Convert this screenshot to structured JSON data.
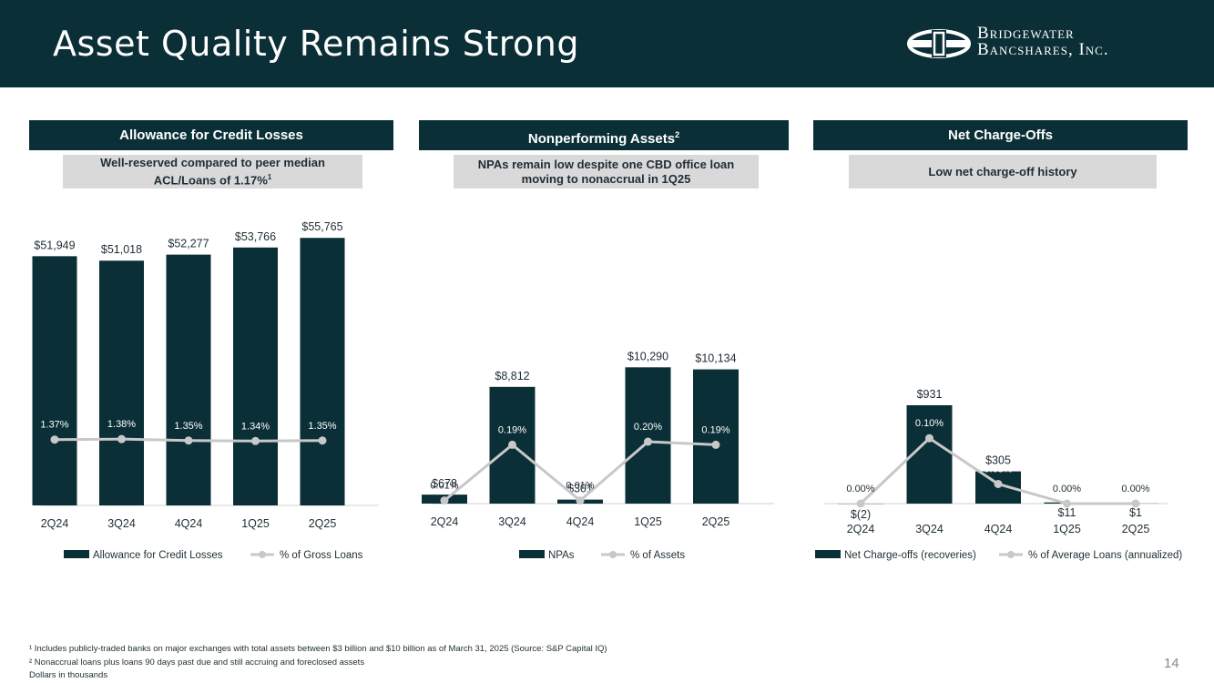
{
  "header": {
    "title": "Asset Quality Remains Strong",
    "logo_line1": "Bridgewater",
    "logo_line2": "Bancshares, Inc."
  },
  "colors": {
    "bar": "#0b2f37",
    "line": "#c8c8c8",
    "marker": "#c8c8c8"
  },
  "panels": [
    {
      "title": "Allowance for Credit Losses",
      "title_sup": "",
      "sub_line1": "Well-reserved compared to peer median",
      "sub_line2": "ACL/Loans of 1.17%",
      "sub_sup": "1"
    },
    {
      "title": "Nonperforming Assets",
      "title_sup": "2",
      "sub_line1": "NPAs remain low despite one CBD office loan",
      "sub_line2": "moving to nonaccrual in 1Q25",
      "sub_sup": ""
    },
    {
      "title": "Net Charge-Offs",
      "title_sup": "",
      "sub_line1": "Low net charge-off history",
      "sub_line2": "",
      "sub_sup": ""
    }
  ],
  "chart_data": [
    {
      "type": "bar",
      "categories": [
        "2Q24",
        "3Q24",
        "4Q24",
        "1Q25",
        "2Q25"
      ],
      "series": [
        {
          "name": "Allowance for Credit Losses",
          "kind": "bar",
          "values": [
            51949,
            51018,
            52277,
            53766,
            55765
          ],
          "labels": [
            "$51,949",
            "$51,018",
            "$52,277",
            "$53,766",
            "$55,765"
          ]
        },
        {
          "name": "% of Gross Loans",
          "kind": "line",
          "values": [
            1.37,
            1.38,
            1.35,
            1.34,
            1.35
          ],
          "labels": [
            "1.37%",
            "1.38%",
            "1.35%",
            "1.34%",
            "1.35%"
          ]
        }
      ],
      "ylim": [
        0,
        56000
      ],
      "line_ylim": [
        0.0,
        3.6
      ]
    },
    {
      "type": "bar",
      "categories": [
        "2Q24",
        "3Q24",
        "4Q24",
        "1Q25",
        "2Q25"
      ],
      "series": [
        {
          "name": "NPAs",
          "kind": "bar",
          "values": [
            678,
            8812,
            301,
            10290,
            10134
          ],
          "labels": [
            "$678",
            "$8,812",
            "$301",
            "$10,290",
            "$10,134"
          ]
        },
        {
          "name": "% of Assets",
          "kind": "line",
          "values": [
            0.01,
            0.19,
            0.01,
            0.2,
            0.19
          ],
          "labels": [
            "0.01%",
            "0.19%",
            "0.01%",
            "0.20%",
            "0.19%"
          ]
        }
      ],
      "ylim": [
        0,
        11000
      ],
      "line_ylim": [
        0.0,
        0.5
      ]
    },
    {
      "type": "bar",
      "categories": [
        "2Q24",
        "3Q24",
        "4Q24",
        "1Q25",
        "2Q25"
      ],
      "series": [
        {
          "name": "Net Charge-offs (recoveries)",
          "kind": "bar",
          "values": [
            -2,
            931,
            305,
            11,
            1
          ],
          "labels": [
            "$(2)",
            "$931",
            "$305",
            "$11",
            "$1"
          ]
        },
        {
          "name": "% of Average Loans (annualized)",
          "kind": "line",
          "values": [
            0.0,
            0.1,
            0.03,
            0.0,
            0.0
          ],
          "labels": [
            "0.00%",
            "0.10%",
            "0.03%",
            "0.00%",
            "0.00%"
          ]
        }
      ],
      "ylim": [
        0,
        1000
      ],
      "line_ylim": [
        0.0,
        0.17
      ]
    }
  ],
  "footnotes": [
    "¹ Includes publicly-traded banks on major exchanges with total assets between $3 billion and $10 billion as of March 31, 2025 (Source: S&P Capital IQ)",
    "² Nonaccrual loans plus loans 90 days past due and still accruing and foreclosed assets",
    "Dollars in thousands"
  ],
  "page_number": "14"
}
